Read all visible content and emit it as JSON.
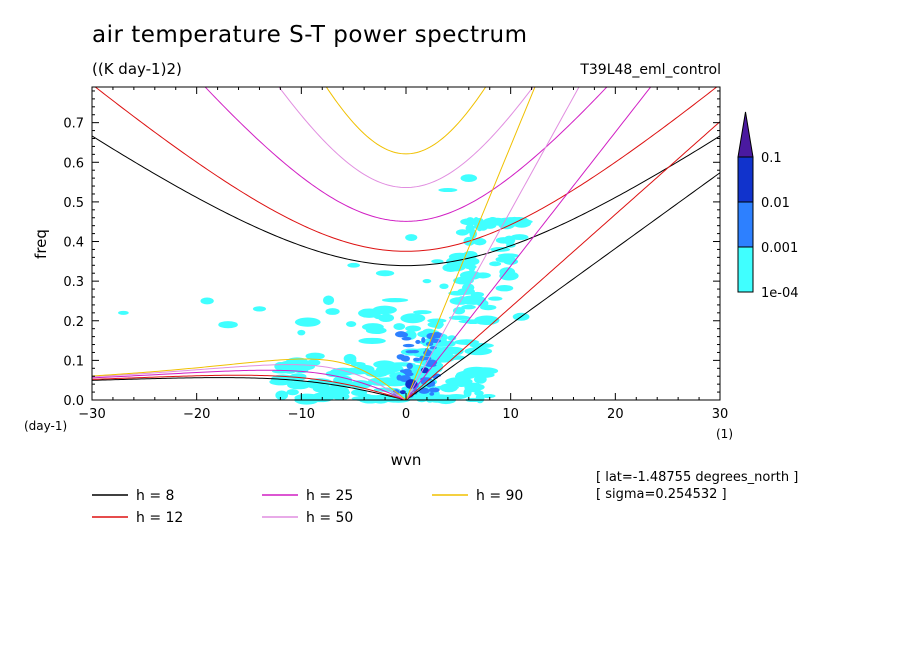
{
  "title": "air temperature S-T power spectrum",
  "units": "((K day-1)2)",
  "run_id": "T39L48_eml_control",
  "notes": [
    "[ lat=-1.48755 degrees_north ]",
    "[ sigma=0.254532 ]"
  ],
  "chart_data": {
    "type": "heatmap",
    "xlabel": "wvn",
    "ylabel": "freq",
    "x_unit": "(1)",
    "y_unit": "(day-1)",
    "xlim": [
      -30,
      30
    ],
    "ylim": [
      0,
      0.79
    ],
    "x_ticks": [
      "-30",
      "-20",
      "-10",
      "0",
      "10",
      "20",
      "30"
    ],
    "y_ticks": [
      "0.0",
      "0.1",
      "0.2",
      "0.3",
      "0.4",
      "0.5",
      "0.6",
      "0.7"
    ],
    "colorbar": {
      "levels": [
        "1e-04",
        "0.001",
        "0.01",
        "0.1"
      ],
      "colors": [
        "#40ffff",
        "#2d80ff",
        "#1133cc",
        "#4a1aa0"
      ]
    },
    "dispersion_legend": [
      {
        "label": "h =  8",
        "color": "#000000"
      },
      {
        "label": "h = 12",
        "color": "#dd1111"
      },
      {
        "label": "h = 25",
        "color": "#d11fc4"
      },
      {
        "label": "h = 50",
        "color": "#e18ee0"
      },
      {
        "label": "h = 90",
        "color": "#f0c000"
      }
    ]
  }
}
